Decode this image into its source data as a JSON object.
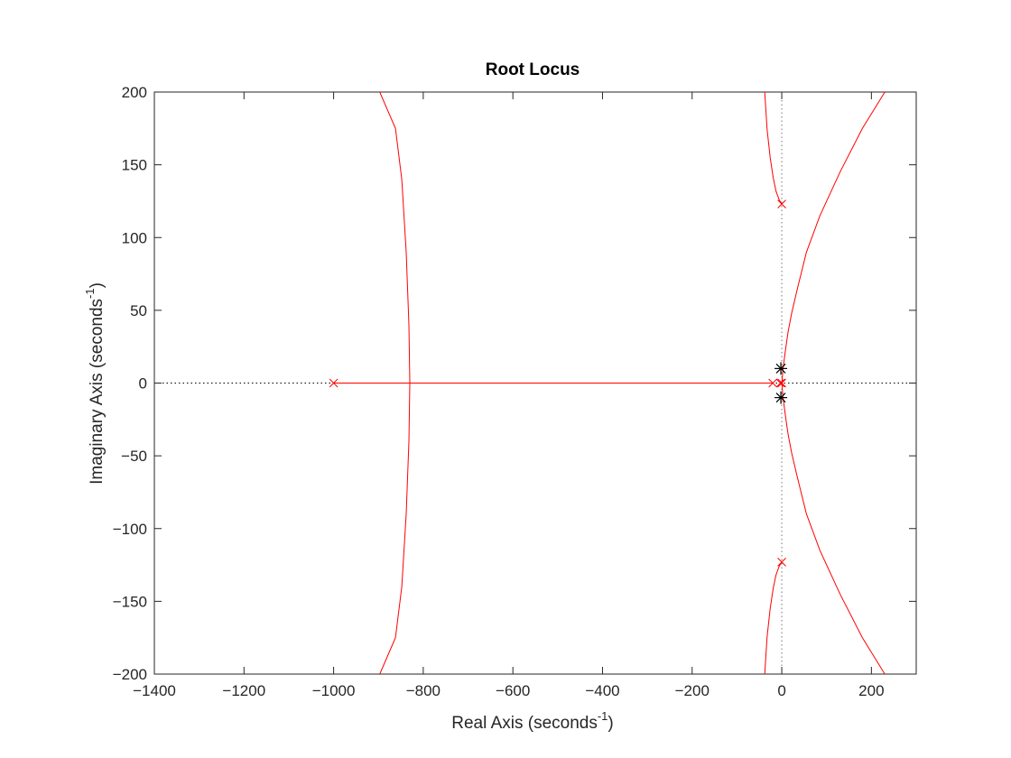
{
  "chart_data": {
    "type": "line",
    "title": "Root Locus",
    "xlabel": {
      "text": "Real Axis (seconds",
      "sup": "-1",
      "close": ")"
    },
    "ylabel": {
      "text": "Imaginary Axis (seconds",
      "sup": "-1",
      "close": ")"
    },
    "xlim": [
      -1400,
      300
    ],
    "ylim": [
      -200,
      200
    ],
    "xticks": [
      -1400,
      -1200,
      -1000,
      -800,
      -600,
      -400,
      -200,
      0,
      200
    ],
    "yticks": [
      -200,
      -150,
      -100,
      -50,
      0,
      50,
      100,
      150,
      200
    ],
    "grid": false,
    "locus_color": "#ff0000",
    "zero_color": "#000000",
    "axis_color": "#262626",
    "branches": [
      {
        "points": [
          [
            -1000,
            0
          ],
          [
            -830,
            0
          ]
        ]
      },
      {
        "points": [
          [
            -830,
            0
          ],
          [
            -832,
            40
          ],
          [
            -838,
            90
          ],
          [
            -848,
            140
          ],
          [
            -862,
            175
          ],
          [
            -897,
            200
          ]
        ]
      },
      {
        "points": [
          [
            -830,
            0
          ],
          [
            -832,
            -40
          ],
          [
            -838,
            -90
          ],
          [
            -848,
            -140
          ],
          [
            -862,
            -175
          ],
          [
            -897,
            -200
          ]
        ]
      },
      {
        "points": [
          [
            -20,
            0
          ],
          [
            -830,
            0
          ]
        ]
      },
      {
        "points": [
          [
            0,
            123
          ],
          [
            -6,
            126
          ],
          [
            -13,
            132
          ],
          [
            -19,
            141
          ],
          [
            -26,
            155
          ],
          [
            -33,
            175
          ],
          [
            -38,
            200
          ]
        ]
      },
      {
        "points": [
          [
            0,
            -123
          ],
          [
            -6,
            -126
          ],
          [
            -13,
            -132
          ],
          [
            -19,
            -141
          ],
          [
            -26,
            -155
          ],
          [
            -33,
            -175
          ],
          [
            -38,
            -200
          ]
        ]
      },
      {
        "points": [
          [
            0,
            0
          ],
          [
            3,
            10
          ],
          [
            8,
            22
          ],
          [
            14,
            35
          ],
          [
            22,
            48
          ],
          [
            35,
            65
          ],
          [
            55,
            90
          ],
          [
            85,
            115
          ],
          [
            130,
            145
          ],
          [
            180,
            175
          ],
          [
            230,
            200
          ]
        ]
      },
      {
        "points": [
          [
            0,
            0
          ],
          [
            3,
            -10
          ],
          [
            8,
            -22
          ],
          [
            14,
            -35
          ],
          [
            22,
            -48
          ],
          [
            35,
            -65
          ],
          [
            55,
            -90
          ],
          [
            85,
            -115
          ],
          [
            130,
            -145
          ],
          [
            180,
            -175
          ],
          [
            230,
            -200
          ]
        ]
      }
    ],
    "poles": [
      [
        -1000,
        0
      ],
      [
        -20,
        0
      ],
      [
        -3,
        0
      ],
      [
        0,
        0
      ],
      [
        0,
        123
      ],
      [
        0,
        -123
      ]
    ],
    "zeros": [
      [
        -2,
        10
      ],
      [
        -2,
        -10
      ]
    ]
  }
}
